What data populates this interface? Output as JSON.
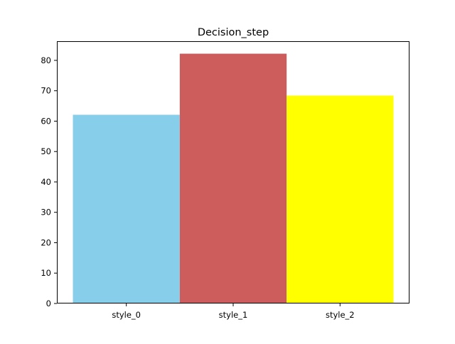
{
  "chart_data": {
    "type": "bar",
    "title": "Decision_step",
    "xlabel": "",
    "ylabel": "",
    "categories": [
      "style_0",
      "style_1",
      "style_2"
    ],
    "values": [
      62.1,
      82.2,
      68.4
    ],
    "colors": [
      "#87ceeb",
      "#cd5c5c",
      "#ffff00"
    ],
    "ylim": [
      0,
      86.3
    ],
    "yticks": [
      0,
      10,
      20,
      30,
      40,
      50,
      60,
      70,
      80
    ],
    "grid": false,
    "legend": "none"
  }
}
